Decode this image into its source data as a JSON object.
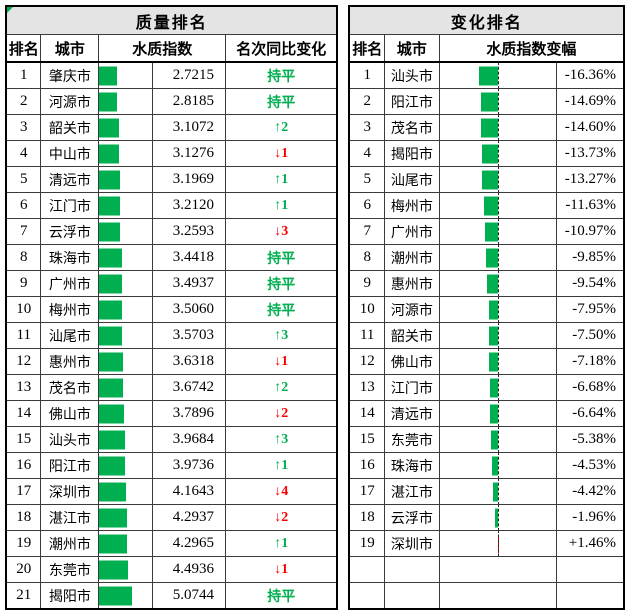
{
  "styles": {
    "bar_green": "#00b050",
    "bar_red": "#ff0000",
    "up_color": "#00b050",
    "down_color": "#ff0000",
    "flat_color": "#00b050",
    "title_bg": "#e4e4e4"
  },
  "chart_data": [
    {
      "type": "table",
      "title": "质量排名",
      "columns": [
        "排名",
        "城市",
        "水质指数",
        "名次同比变化"
      ],
      "bar": {
        "color": "#00b050",
        "scale_min": 0,
        "scale_max": 8.2,
        "origin": "left"
      },
      "rows": [
        {
          "rank": "1",
          "city": "肇庆市",
          "index": "2.7215",
          "index_value": 2.7215,
          "rank_change": "持平",
          "trend": "flat"
        },
        {
          "rank": "2",
          "city": "河源市",
          "index": "2.8185",
          "index_value": 2.8185,
          "rank_change": "持平",
          "trend": "flat"
        },
        {
          "rank": "3",
          "city": "韶关市",
          "index": "3.1072",
          "index_value": 3.1072,
          "rank_change": "↑2",
          "trend": "up"
        },
        {
          "rank": "4",
          "city": "中山市",
          "index": "3.1276",
          "index_value": 3.1276,
          "rank_change": "↓1",
          "trend": "down"
        },
        {
          "rank": "5",
          "city": "清远市",
          "index": "3.1969",
          "index_value": 3.1969,
          "rank_change": "↑1",
          "trend": "up"
        },
        {
          "rank": "6",
          "city": "江门市",
          "index": "3.2120",
          "index_value": 3.212,
          "rank_change": "↑1",
          "trend": "up"
        },
        {
          "rank": "7",
          "city": "云浮市",
          "index": "3.2593",
          "index_value": 3.2593,
          "rank_change": "↓3",
          "trend": "down"
        },
        {
          "rank": "8",
          "city": "珠海市",
          "index": "3.4418",
          "index_value": 3.4418,
          "rank_change": "持平",
          "trend": "flat"
        },
        {
          "rank": "9",
          "city": "广州市",
          "index": "3.4937",
          "index_value": 3.4937,
          "rank_change": "持平",
          "trend": "flat"
        },
        {
          "rank": "10",
          "city": "梅州市",
          "index": "3.5060",
          "index_value": 3.506,
          "rank_change": "持平",
          "trend": "flat"
        },
        {
          "rank": "11",
          "city": "汕尾市",
          "index": "3.5703",
          "index_value": 3.5703,
          "rank_change": "↑3",
          "trend": "up"
        },
        {
          "rank": "12",
          "city": "惠州市",
          "index": "3.6318",
          "index_value": 3.6318,
          "rank_change": "↓1",
          "trend": "down"
        },
        {
          "rank": "13",
          "city": "茂名市",
          "index": "3.6742",
          "index_value": 3.6742,
          "rank_change": "↑2",
          "trend": "up"
        },
        {
          "rank": "14",
          "city": "佛山市",
          "index": "3.7896",
          "index_value": 3.7896,
          "rank_change": "↓2",
          "trend": "down"
        },
        {
          "rank": "15",
          "city": "汕头市",
          "index": "3.9684",
          "index_value": 3.9684,
          "rank_change": "↑3",
          "trend": "up"
        },
        {
          "rank": "16",
          "city": "阳江市",
          "index": "3.9736",
          "index_value": 3.9736,
          "rank_change": "↑1",
          "trend": "up"
        },
        {
          "rank": "17",
          "city": "深圳市",
          "index": "4.1643",
          "index_value": 4.1643,
          "rank_change": "↓4",
          "trend": "down"
        },
        {
          "rank": "18",
          "city": "湛江市",
          "index": "4.2937",
          "index_value": 4.2937,
          "rank_change": "↓2",
          "trend": "down"
        },
        {
          "rank": "19",
          "city": "潮州市",
          "index": "4.2965",
          "index_value": 4.2965,
          "rank_change": "↑1",
          "trend": "up"
        },
        {
          "rank": "20",
          "city": "东莞市",
          "index": "4.4936",
          "index_value": 4.4936,
          "rank_change": "↓1",
          "trend": "down"
        },
        {
          "rank": "21",
          "city": "揭阳市",
          "index": "5.0744",
          "index_value": 5.0744,
          "rank_change": "持平",
          "trend": "flat"
        }
      ]
    },
    {
      "type": "table",
      "title": "变化排名",
      "columns": [
        "排名",
        "城市",
        "水质指数变幅"
      ],
      "bar": {
        "negative_color": "#00b050",
        "positive_color": "#ff0000",
        "axis": "center-dashed",
        "scale_abs_max": 50
      },
      "rows": [
        {
          "rank": "1",
          "city": "汕头市",
          "change": "-16.36%",
          "change_value": -16.36
        },
        {
          "rank": "2",
          "city": "阳江市",
          "change": "-14.69%",
          "change_value": -14.69
        },
        {
          "rank": "3",
          "city": "茂名市",
          "change": "-14.60%",
          "change_value": -14.6
        },
        {
          "rank": "4",
          "city": "揭阳市",
          "change": "-13.73%",
          "change_value": -13.73
        },
        {
          "rank": "5",
          "city": "汕尾市",
          "change": "-13.27%",
          "change_value": -13.27
        },
        {
          "rank": "6",
          "city": "梅州市",
          "change": "-11.63%",
          "change_value": -11.63
        },
        {
          "rank": "7",
          "city": "广州市",
          "change": "-10.97%",
          "change_value": -10.97
        },
        {
          "rank": "8",
          "city": "潮州市",
          "change": "-9.85%",
          "change_value": -9.85
        },
        {
          "rank": "9",
          "city": "惠州市",
          "change": "-9.54%",
          "change_value": -9.54
        },
        {
          "rank": "10",
          "city": "河源市",
          "change": "-7.95%",
          "change_value": -7.95
        },
        {
          "rank": "11",
          "city": "韶关市",
          "change": "-7.50%",
          "change_value": -7.5
        },
        {
          "rank": "12",
          "city": "佛山市",
          "change": "-7.18%",
          "change_value": -7.18
        },
        {
          "rank": "13",
          "city": "江门市",
          "change": "-6.68%",
          "change_value": -6.68
        },
        {
          "rank": "14",
          "city": "清远市",
          "change": "-6.64%",
          "change_value": -6.64
        },
        {
          "rank": "15",
          "city": "东莞市",
          "change": "-5.38%",
          "change_value": -5.38
        },
        {
          "rank": "16",
          "city": "珠海市",
          "change": "-4.53%",
          "change_value": -4.53
        },
        {
          "rank": "17",
          "city": "湛江市",
          "change": "-4.42%",
          "change_value": -4.42
        },
        {
          "rank": "18",
          "city": "云浮市",
          "change": "-1.96%",
          "change_value": -1.96
        },
        {
          "rank": "19",
          "city": "深圳市",
          "change": "+1.46%",
          "change_value": 1.46
        }
      ],
      "trailing_empty_rows": 2
    }
  ]
}
